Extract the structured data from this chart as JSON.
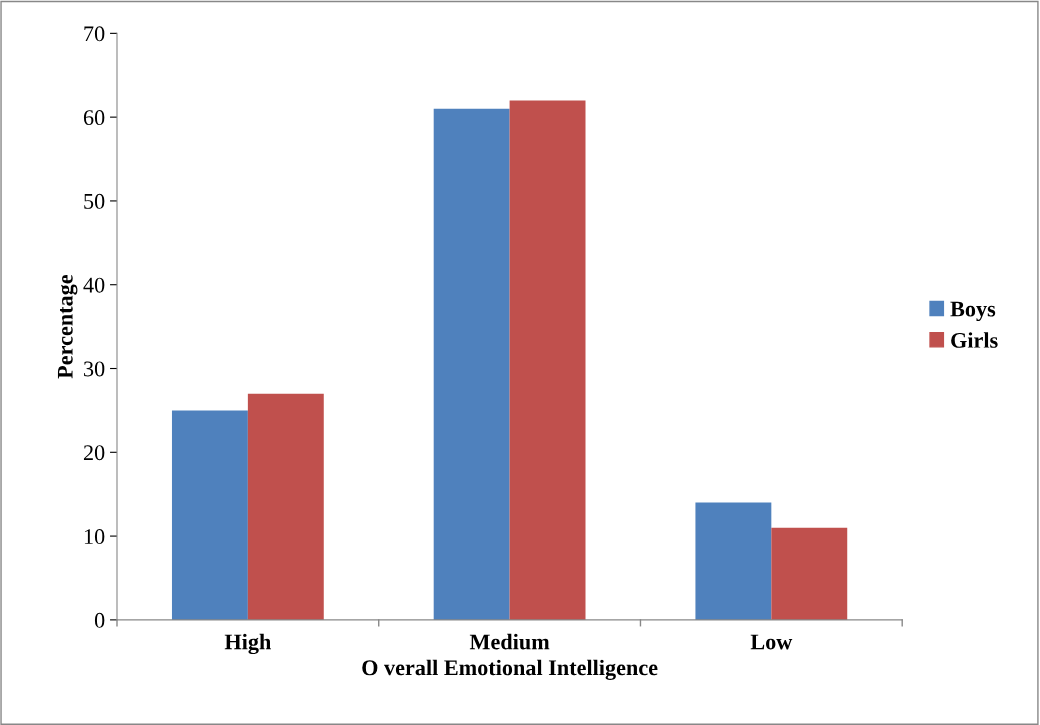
{
  "chart_data": {
    "type": "bar",
    "categories": [
      "High",
      "Medium",
      "Low"
    ],
    "series": [
      {
        "name": "Boys",
        "color": "#4f81bd",
        "values": [
          25,
          61,
          14
        ]
      },
      {
        "name": "Girls",
        "color": "#c0504d",
        "values": [
          27,
          62,
          11
        ]
      }
    ],
    "xlabel": "O verall Emotional Intelligence",
    "ylabel": "Percentage",
    "ylim": [
      0,
      70
    ],
    "yticks": [
      0,
      10,
      20,
      30,
      40,
      50,
      60,
      70
    ],
    "grid": false,
    "legend": "right"
  }
}
